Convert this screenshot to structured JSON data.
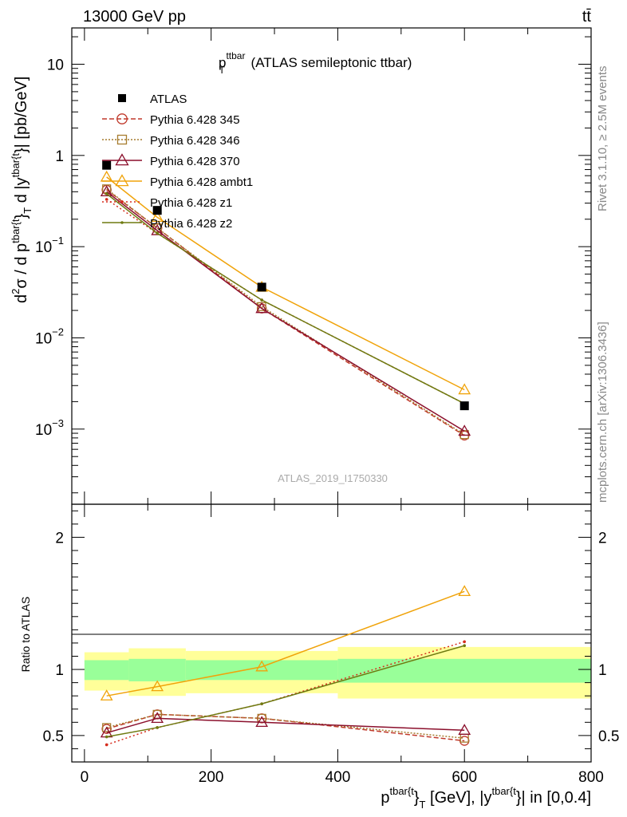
{
  "header": {
    "left": "13000 GeV pp",
    "right": "tt̄"
  },
  "side_labels": {
    "rivet": "Rivet 3.1.10, ≥ 2.5M events",
    "mcplots": "mcplots.cern.ch [arXiv:1306.3436]"
  },
  "chart_data": [
    {
      "type": "line",
      "scale": "log",
      "title": {
        "main": "p",
        "sup": "ttbar",
        "sub": "T",
        "rest": " (ATLAS semileptonic ttbar)"
      },
      "watermark": "ATLAS_2019_I1750330",
      "ylabel": {
        "p1": "d",
        "sup1": "2",
        "p2": "σ / d p",
        "sup2": "tbar{t",
        "p3": "}",
        "sub3": "T",
        "p4": " d |y",
        "sup4": "tbar{t",
        "p5": "}| [pb/GeV]"
      },
      "xlim": [
        -20,
        800
      ],
      "ylim": [
        0.00015,
        25
      ],
      "yticks": [
        {
          "v": 10,
          "label": "10",
          "exp": ""
        },
        {
          "v": 1,
          "label": "1",
          "exp": ""
        },
        {
          "v": 0.1,
          "label": "10",
          "exp": "−1"
        },
        {
          "v": 0.01,
          "label": "10",
          "exp": "−2"
        },
        {
          "v": 0.001,
          "label": "10",
          "exp": "−3"
        }
      ],
      "x": [
        35,
        115,
        280,
        600
      ],
      "x_edges": [
        0,
        70,
        160,
        400,
        800
      ],
      "data": {
        "name": "ATLAS",
        "values": [
          0.78,
          0.25,
          0.036,
          0.0018
        ]
      },
      "series": [
        {
          "name": "Pythia 6.428 345",
          "color": "#c0392b",
          "marker": "circle",
          "dash": "6,3",
          "values": [
            0.42,
            0.16,
            0.021,
            0.00085
          ]
        },
        {
          "name": "Pythia 6.428 346",
          "color": "#a67c2e",
          "marker": "square",
          "dash": "2,2",
          "values": [
            0.43,
            0.16,
            0.022,
            0.00087
          ]
        },
        {
          "name": "Pythia 6.428 370",
          "color": "#8b0f2c",
          "marker": "triangle",
          "dash": "",
          "values": [
            0.4,
            0.15,
            0.021,
            0.00095
          ]
        },
        {
          "name": "Pythia 6.428 ambt1",
          "color": "#f0a30a",
          "marker": "triangle",
          "dash": "",
          "values": [
            0.58,
            0.21,
            0.036,
            0.0027
          ]
        },
        {
          "name": "Pythia 6.428 z1",
          "color": "#d62d1e",
          "marker": "dot",
          "dash": "2,3",
          "values": [
            0.33,
            0.14,
            0.026,
            0.0019
          ]
        },
        {
          "name": "Pythia 6.428 z2",
          "color": "#6e7a10",
          "marker": "dot",
          "dash": "",
          "values": [
            0.38,
            0.14,
            0.026,
            0.0019
          ]
        }
      ]
    },
    {
      "type": "line",
      "scale": "linear",
      "ylabel": "Ratio to ATLAS",
      "xlabel": {
        "p1": "p",
        "sup1": "tbar{t",
        "p2": "}",
        "sub2": "T",
        "p3": " [GeV], |y",
        "sup3": "tbar{t",
        "p4": "}| in [0,0.4]"
      },
      "xlim": [
        -20,
        800
      ],
      "ylim": [
        0.3,
        2.25
      ],
      "yticks": [
        {
          "v": 0.5,
          "label": "0.5"
        },
        {
          "v": 1,
          "label": "1"
        },
        {
          "v": 2,
          "label": "2"
        }
      ],
      "xticks": [
        {
          "v": 0,
          "label": "0"
        },
        {
          "v": 200,
          "label": "200"
        },
        {
          "v": 400,
          "label": "400"
        },
        {
          "v": 600,
          "label": "600"
        },
        {
          "v": 800,
          "label": "800"
        }
      ],
      "x": [
        35,
        115,
        280,
        600
      ],
      "bands": [
        {
          "x0": 0,
          "x1": 70,
          "stat": [
            0.92,
            1.07
          ],
          "total": [
            0.84,
            1.13
          ]
        },
        {
          "x0": 70,
          "x1": 160,
          "stat": [
            0.91,
            1.08
          ],
          "total": [
            0.8,
            1.16
          ]
        },
        {
          "x0": 160,
          "x1": 400,
          "stat": [
            0.92,
            1.07
          ],
          "total": [
            0.82,
            1.14
          ]
        },
        {
          "x0": 400,
          "x1": 800,
          "stat": [
            0.9,
            1.08
          ],
          "total": [
            0.78,
            1.17
          ]
        }
      ],
      "series": [
        {
          "name": "Pythia 6.428 345",
          "color": "#c0392b",
          "marker": "circle",
          "dash": "6,3",
          "values": [
            0.55,
            0.66,
            0.63,
            0.46
          ]
        },
        {
          "name": "Pythia 6.428 346",
          "color": "#a67c2e",
          "marker": "square",
          "dash": "2,2",
          "values": [
            0.56,
            0.66,
            0.63,
            0.48
          ]
        },
        {
          "name": "Pythia 6.428 370",
          "color": "#8b0f2c",
          "marker": "triangle",
          "dash": "",
          "values": [
            0.52,
            0.63,
            0.6,
            0.54
          ]
        },
        {
          "name": "Pythia 6.428 ambt1",
          "color": "#f0a30a",
          "marker": "triangle",
          "dash": "",
          "values": [
            0.8,
            0.87,
            1.02,
            1.59
          ]
        },
        {
          "name": "Pythia 6.428 z1",
          "color": "#d62d1e",
          "marker": "dot",
          "dash": "2,3",
          "values": [
            0.43,
            0.56,
            0.74,
            1.21
          ]
        },
        {
          "name": "Pythia 6.428 z2",
          "color": "#6e7a10",
          "marker": "dot",
          "dash": "",
          "values": [
            0.49,
            0.56,
            0.74,
            1.18
          ]
        }
      ]
    }
  ]
}
